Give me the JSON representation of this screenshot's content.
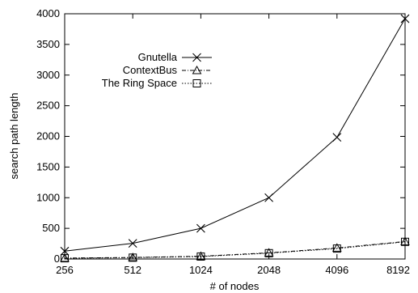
{
  "chart_data": {
    "type": "line",
    "title": "",
    "xlabel": "# of nodes",
    "ylabel": "search path length",
    "x": [
      256,
      512,
      1024,
      2048,
      4096,
      8192
    ],
    "x_tick_labels": [
      "256",
      "512",
      "1024",
      "2048",
      "4096",
      "8192"
    ],
    "x_scale": "log2",
    "xlim": [
      256,
      8192
    ],
    "ylim": [
      0,
      4000
    ],
    "y_ticks": [
      0,
      500,
      1000,
      1500,
      2000,
      2500,
      3000,
      3500,
      4000
    ],
    "grid": false,
    "legend_position": "upper-left",
    "series": [
      {
        "name": "Gnutella",
        "values": [
          128,
          256,
          500,
          1000,
          1985,
          3920
        ],
        "marker": "cross",
        "line_style": "solid",
        "color": "#000000"
      },
      {
        "name": "ContextBus",
        "values": [
          15,
          25,
          45,
          100,
          180,
          285
        ],
        "marker": "triangle",
        "line_style": "dash-dot",
        "color": "#000000"
      },
      {
        "name": "The Ring Space",
        "values": [
          12,
          22,
          40,
          95,
          170,
          280
        ],
        "marker": "square",
        "line_style": "dotted",
        "color": "#000000"
      }
    ]
  }
}
